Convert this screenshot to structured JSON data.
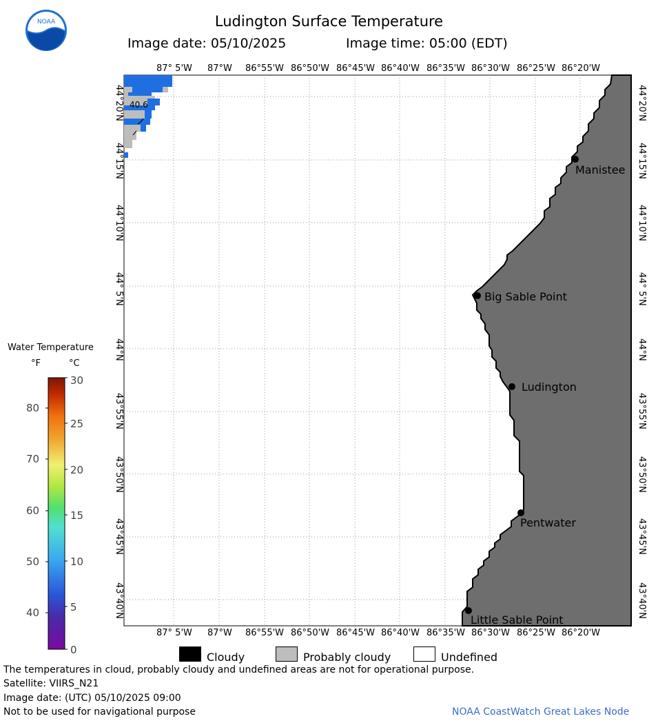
{
  "header": {
    "title": "Ludington Surface Temperature",
    "image_date": "Image date: 05/10/2025",
    "image_time": "Image time: 05:00 (EDT)"
  },
  "logo": {
    "text": "NOAA",
    "colors": {
      "outer": "#1f6fd0",
      "inner": "#ffffff",
      "bird": "#0a4aa6"
    }
  },
  "map": {
    "lon_labels": [
      "87° 5'W",
      "87°W",
      "86°55'W",
      "86°50'W",
      "86°45'W",
      "86°40'W",
      "86°35'W",
      "86°30'W",
      "86°25'W",
      "86°20'W"
    ],
    "lat_labels": [
      "44°20'N",
      "44°15'N",
      "44°10'N",
      "44° 5'N",
      "44°N",
      "43°55'N",
      "43°50'N",
      "43°45'N",
      "43°40'N"
    ],
    "colors": {
      "land": "#6e6e6e",
      "water_undefined": "#ffffff",
      "probably_cloudy": "#bdbdbd",
      "water_5c": "#1f6fe0",
      "grid": "#888888"
    },
    "temperature_label": "40.6",
    "places": [
      {
        "name": "Manistee",
        "id": "manistee"
      },
      {
        "name": "Big Sable Point",
        "id": "big-sable-point"
      },
      {
        "name": "Ludington",
        "id": "ludington"
      },
      {
        "name": "Pentwater",
        "id": "pentwater"
      },
      {
        "name": "Little Sable Point",
        "id": "little-sable-point"
      }
    ]
  },
  "legend": {
    "title": "Water Temperature",
    "unit_f": "°F",
    "unit_c": "°C",
    "f_ticks": [
      "80",
      "70",
      "60",
      "50",
      "40"
    ],
    "c_ticks": [
      "30",
      "25",
      "20",
      "15",
      "10",
      "5",
      "0"
    ],
    "categories": [
      {
        "label": "Cloudy",
        "color": "#000000"
      },
      {
        "label": "Probably cloudy",
        "color": "#bdbdbd"
      },
      {
        "label": "Undefined",
        "color": "#ffffff"
      }
    ]
  },
  "footer": {
    "disclaimer": "The temperatures in cloud, probably cloudy and undefined areas are not for operational purpose.",
    "satellite": "Satellite: VIIRS_N21",
    "utc_date": "Image date: (UTC) 05/10/2025  09:00",
    "nav_warning": "Not to be used for navigational purpose",
    "credit": "NOAA CoastWatch Great Lakes Node"
  }
}
